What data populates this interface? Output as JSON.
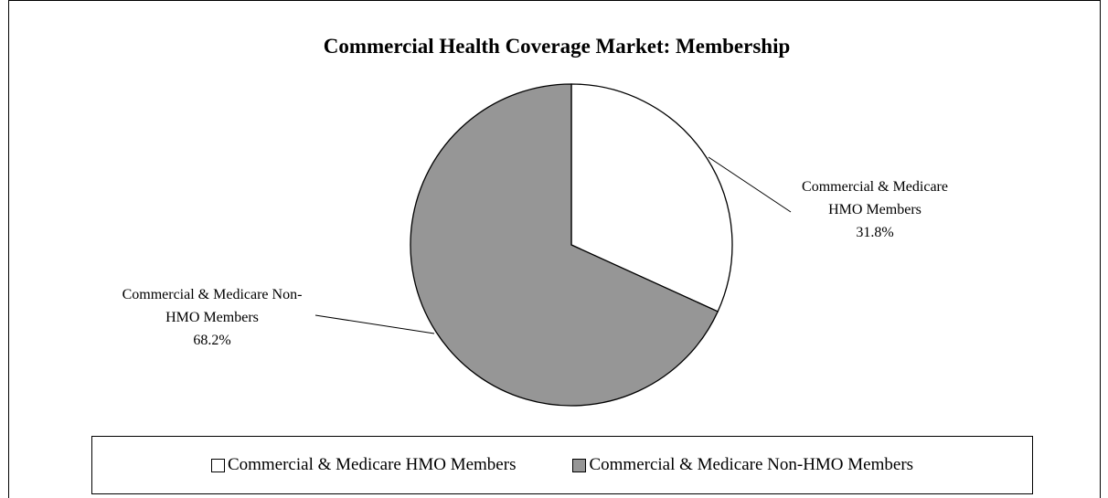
{
  "chart_data": {
    "type": "pie",
    "title": "Commercial Health Coverage Market: Membership",
    "categories": [
      "Commercial & Medicare HMO Members",
      "Commercial & Medicare Non-HMO Members"
    ],
    "values": [
      31.8,
      68.2
    ],
    "value_labels": [
      "31.8%",
      "68.2%"
    ],
    "colors": [
      "#ffffff",
      "#969696"
    ],
    "legend": "bottom"
  }
}
